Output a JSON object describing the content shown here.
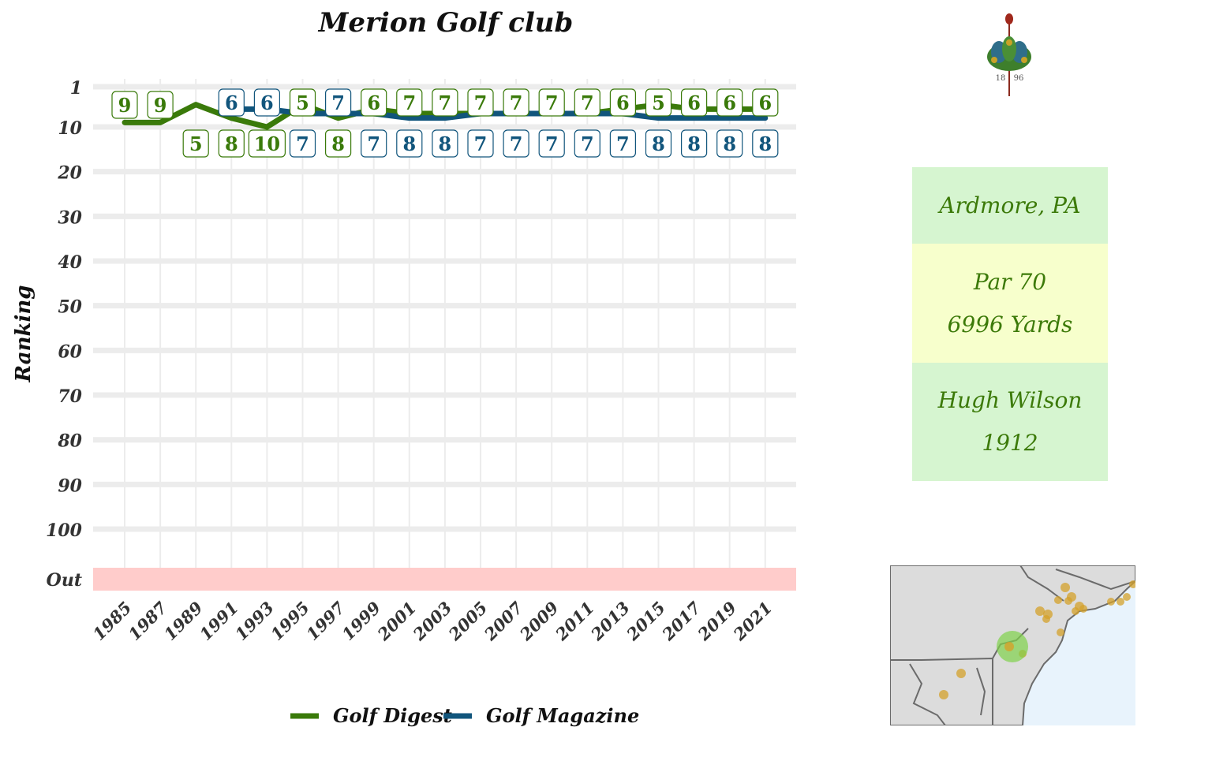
{
  "colors": {
    "golf_digest": "#3a7a0a",
    "golf_magazine": "#11557c",
    "out_band": "#ffcccb",
    "box_green": "#d6f5d0",
    "box_yellow": "#f7ffcc",
    "info_text": "#3c7a09",
    "map_water": "#e8f3fc",
    "map_land": "#dcdcdc",
    "map_dots": "#d4a12b",
    "map_highlight": "#7fd14a"
  },
  "info": {
    "location": "Ardmore, PA",
    "par": "Par 70",
    "yards": "6996 Yards",
    "architect": "Hugh Wilson",
    "year_built": "1912"
  },
  "logo": {
    "year_left": "18",
    "year_right": "96",
    "icon": "peacock-crest-icon"
  },
  "map": {
    "icon": "northeast-us-map",
    "highlight": "Ardmore, PA"
  },
  "chart_data": {
    "type": "line",
    "title": "Merion Golf club",
    "xlabel": "",
    "ylabel": "Ranking",
    "x": [
      1985,
      1987,
      1989,
      1991,
      1993,
      1995,
      1997,
      1999,
      2001,
      2003,
      2005,
      2007,
      2009,
      2011,
      2013,
      2015,
      2017,
      2019,
      2021
    ],
    "x_ticks": [
      "1985",
      "1987",
      "1989",
      "1991",
      "1993",
      "1995",
      "1997",
      "1999",
      "2001",
      "2003",
      "2005",
      "2007",
      "2009",
      "2011",
      "2013",
      "2015",
      "2017",
      "2019",
      "2021"
    ],
    "y_ticks": [
      "1",
      "10",
      "20",
      "30",
      "40",
      "50",
      "60",
      "70",
      "80",
      "90",
      "100",
      "Out"
    ],
    "y_reversed": true,
    "ylim": [
      1,
      110
    ],
    "out_band": "Out",
    "grid": true,
    "legend_position": "bottom",
    "series": [
      {
        "name": "Golf Digest",
        "values": [
          9,
          9,
          5,
          8,
          10,
          5,
          8,
          6,
          7,
          7,
          7,
          7,
          7,
          7,
          6,
          5,
          6,
          6,
          6
        ]
      },
      {
        "name": "Golf Magazine",
        "values": [
          null,
          null,
          null,
          6,
          6,
          7,
          7,
          7,
          8,
          8,
          7,
          7,
          7,
          7,
          7,
          8,
          8,
          8,
          8
        ]
      }
    ]
  }
}
